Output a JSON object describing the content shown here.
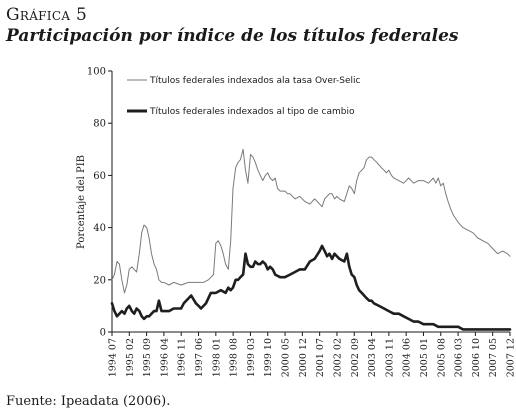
{
  "figure": {
    "label": "Gráfica 5",
    "title": "Participación por índice de los títulos federales",
    "source": "Fuente: Ipeadata (2006)."
  },
  "chart_data": {
    "type": "line",
    "ylabel": "Porcentaje del PIB",
    "ylim": [
      0,
      100
    ],
    "yticks": [
      0,
      20,
      40,
      60,
      80,
      100
    ],
    "grid": false,
    "legend_position": "top-left",
    "x_tick_labels": [
      "1994 07",
      "1995 02",
      "1995 09",
      "1996 04",
      "1996 11",
      "1997 06",
      "1998 01",
      "1998 08",
      "1999 03",
      "1999 10",
      "2000 05",
      "2000 12",
      "2001 07",
      "2002 02",
      "2002 09",
      "2003 04",
      "2003 11",
      "2004 06",
      "2005 01",
      "2005 08",
      "2006 03",
      "2006 10",
      "2007 05",
      "2007 12"
    ],
    "x_range": [
      1994.5,
      2007.917
    ],
    "series": [
      {
        "name": "Títulos federales indexados ala tasa Over-Selic",
        "color": "#7a7a7a",
        "style": "thin",
        "x": [
          1994.5,
          1994.58,
          1994.67,
          1994.75,
          1994.83,
          1994.92,
          1995.0,
          1995.08,
          1995.17,
          1995.25,
          1995.33,
          1995.42,
          1995.5,
          1995.58,
          1995.67,
          1995.75,
          1995.83,
          1995.92,
          1996.0,
          1996.08,
          1996.17,
          1996.25,
          1996.42,
          1996.58,
          1996.83,
          1997.08,
          1997.33,
          1997.58,
          1997.75,
          1997.92,
          1998.0,
          1998.08,
          1998.17,
          1998.25,
          1998.33,
          1998.42,
          1998.5,
          1998.58,
          1998.67,
          1998.75,
          1998.83,
          1998.92,
          1999.0,
          1999.08,
          1999.17,
          1999.25,
          1999.33,
          1999.42,
          1999.5,
          1999.58,
          1999.67,
          1999.75,
          1999.83,
          1999.92,
          2000.0,
          2000.08,
          2000.17,
          2000.25,
          2000.33,
          2000.42,
          2000.5,
          2000.67,
          2000.83,
          2001.0,
          2001.17,
          2001.33,
          2001.42,
          2001.5,
          2001.58,
          2001.67,
          2001.75,
          2001.83,
          2001.92,
          2002.0,
          2002.08,
          2002.17,
          2002.33,
          2002.5,
          2002.58,
          2002.67,
          2002.75,
          2002.83,
          2002.92,
          2003.0,
          2003.08,
          2003.17,
          2003.25,
          2003.33,
          2003.42,
          2003.5,
          2003.58,
          2003.67,
          2003.75,
          2003.83,
          2003.92,
          2004.0,
          2004.17,
          2004.33,
          2004.5,
          2004.67,
          2004.83,
          2005.0,
          2005.17,
          2005.33,
          2005.42,
          2005.5,
          2005.58,
          2005.67,
          2005.75,
          2005.83,
          2005.92,
          2006.0,
          2006.17,
          2006.33,
          2006.5,
          2006.67,
          2006.83,
          2007.0,
          2007.17,
          2007.33,
          2007.5,
          2007.67,
          2007.83,
          2007.917
        ],
        "values": [
          20,
          22,
          27,
          26,
          20,
          15,
          18,
          24,
          25,
          24,
          23,
          30,
          38,
          41,
          40,
          36,
          30,
          26,
          24,
          20,
          19,
          19,
          18,
          19,
          18,
          19,
          19,
          19,
          20,
          22,
          34,
          35,
          33,
          30,
          26,
          24,
          35,
          55,
          63,
          65,
          66,
          70,
          62,
          57,
          68,
          67,
          65,
          62,
          60,
          58,
          60,
          61,
          59,
          58,
          59,
          55,
          54,
          54,
          54,
          53,
          53,
          51,
          52,
          50,
          49,
          51,
          50,
          49,
          48,
          51,
          52,
          53,
          53,
          51,
          52,
          51,
          50,
          56,
          55,
          53,
          58,
          61,
          62,
          63,
          66,
          67,
          67,
          66,
          65,
          64,
          63,
          62,
          61,
          62,
          60,
          59,
          58,
          57,
          59,
          57,
          58,
          58,
          57,
          59,
          57,
          59,
          56,
          57,
          53,
          50,
          47,
          45,
          42,
          40,
          39,
          38,
          36,
          35,
          34,
          32,
          30,
          31,
          30,
          29
        ]
      },
      {
        "name": "Títulos federales indexados al tipo de cambio",
        "color": "#1e1e1e",
        "style": "thick",
        "x": [
          1994.5,
          1994.58,
          1994.67,
          1994.75,
          1994.83,
          1994.92,
          1995.0,
          1995.08,
          1995.17,
          1995.25,
          1995.33,
          1995.42,
          1995.5,
          1995.58,
          1995.67,
          1995.75,
          1995.83,
          1995.92,
          1996.0,
          1996.08,
          1996.17,
          1996.25,
          1996.42,
          1996.58,
          1996.83,
          1996.92,
          1997.0,
          1997.17,
          1997.33,
          1997.42,
          1997.5,
          1997.67,
          1997.83,
          1998.0,
          1998.17,
          1998.33,
          1998.42,
          1998.5,
          1998.58,
          1998.67,
          1998.75,
          1998.83,
          1998.92,
          1999.0,
          1999.08,
          1999.17,
          1999.25,
          1999.33,
          1999.42,
          1999.5,
          1999.58,
          1999.67,
          1999.75,
          1999.83,
          1999.92,
          2000.0,
          2000.17,
          2000.33,
          2000.5,
          2000.67,
          2000.83,
          2001.0,
          2001.17,
          2001.33,
          2001.5,
          2001.58,
          2001.67,
          2001.75,
          2001.83,
          2001.92,
          2002.0,
          2002.08,
          2002.17,
          2002.33,
          2002.42,
          2002.5,
          2002.58,
          2002.67,
          2002.75,
          2002.83,
          2002.92,
          2003.0,
          2003.08,
          2003.17,
          2003.25,
          2003.33,
          2003.5,
          2003.67,
          2003.83,
          2004.0,
          2004.17,
          2004.33,
          2004.5,
          2004.67,
          2004.83,
          2005.0,
          2005.17,
          2005.33,
          2005.5,
          2005.67,
          2005.83,
          2006.0,
          2006.17,
          2006.33,
          2006.5,
          2006.67,
          2006.83,
          2007.0,
          2007.17,
          2007.33,
          2007.5,
          2007.67,
          2007.83,
          2007.917
        ],
        "values": [
          11,
          8,
          6,
          7,
          8,
          7,
          9,
          10,
          8,
          7,
          9,
          8,
          6,
          5,
          6,
          6,
          7,
          8,
          8,
          12,
          8,
          8,
          8,
          9,
          9,
          11,
          12,
          14,
          11,
          10,
          9,
          11,
          15,
          15,
          16,
          15,
          17,
          16,
          17,
          20,
          20,
          21,
          22,
          30,
          26,
          25,
          25,
          27,
          26,
          26,
          27,
          26,
          24,
          25,
          24,
          22,
          21,
          21,
          22,
          23,
          24,
          24,
          27,
          28,
          31,
          33,
          31,
          29,
          30,
          28,
          30,
          29,
          28,
          27,
          30,
          25,
          22,
          21,
          18,
          16,
          15,
          14,
          13,
          12,
          12,
          11,
          10,
          9,
          8,
          7,
          7,
          6,
          5,
          4,
          4,
          3,
          3,
          3,
          2,
          2,
          2,
          2,
          2,
          1,
          1,
          1,
          1,
          1,
          1,
          1,
          1,
          1,
          1,
          1
        ]
      }
    ]
  }
}
